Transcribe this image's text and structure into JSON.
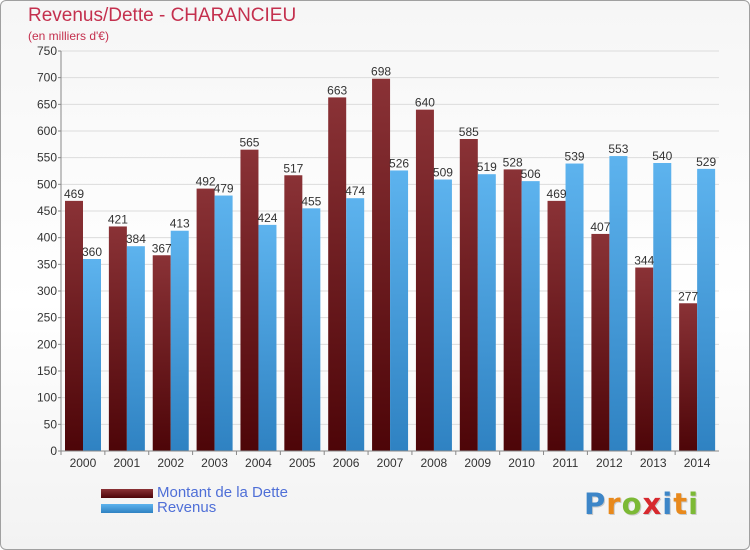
{
  "title": "Revenus/Dette - CHARANCIEU",
  "subtitle": "(en milliers d'€)",
  "logo": {
    "text": "Proxiti",
    "letters": [
      {
        "ch": "P",
        "color": "#3d86c8"
      },
      {
        "ch": "r",
        "color": "#e8891c"
      },
      {
        "ch": "o",
        "color": "#7cb935"
      },
      {
        "ch": "x",
        "color": "#d7282e"
      },
      {
        "ch": "i",
        "color": "#3d86c8"
      },
      {
        "ch": "t",
        "color": "#e8891c"
      },
      {
        "ch": "i",
        "color": "#7cb935"
      }
    ]
  },
  "legend": {
    "items": [
      {
        "label": "Montant de la Dette",
        "color": "#7a1f24"
      },
      {
        "label": "Revenus",
        "color": "#4aa8e6"
      }
    ]
  },
  "chart_data": {
    "type": "bar",
    "title": "Revenus/Dette - CHARANCIEU",
    "subtitle": "(en milliers d'€)",
    "categories": [
      "2000",
      "2001",
      "2002",
      "2003",
      "2004",
      "2005",
      "2006",
      "2007",
      "2008",
      "2009",
      "2010",
      "2011",
      "2012",
      "2013",
      "2014"
    ],
    "series": [
      {
        "name": "Montant de la Dette",
        "color": "#7a1f24",
        "values": [
          469,
          421,
          367,
          492,
          565,
          517,
          663,
          698,
          640,
          585,
          528,
          469,
          407,
          344,
          277
        ]
      },
      {
        "name": "Revenus",
        "color": "#4aa8e6",
        "values": [
          360,
          384,
          413,
          479,
          424,
          455,
          474,
          526,
          509,
          519,
          506,
          539,
          553,
          540,
          529
        ]
      }
    ],
    "ylim": [
      0,
      750
    ],
    "yticks": [
      0,
      50,
      100,
      150,
      200,
      250,
      300,
      350,
      400,
      450,
      500,
      550,
      600,
      650,
      700,
      750
    ],
    "grid": true,
    "legend_position": "bottom-left"
  }
}
